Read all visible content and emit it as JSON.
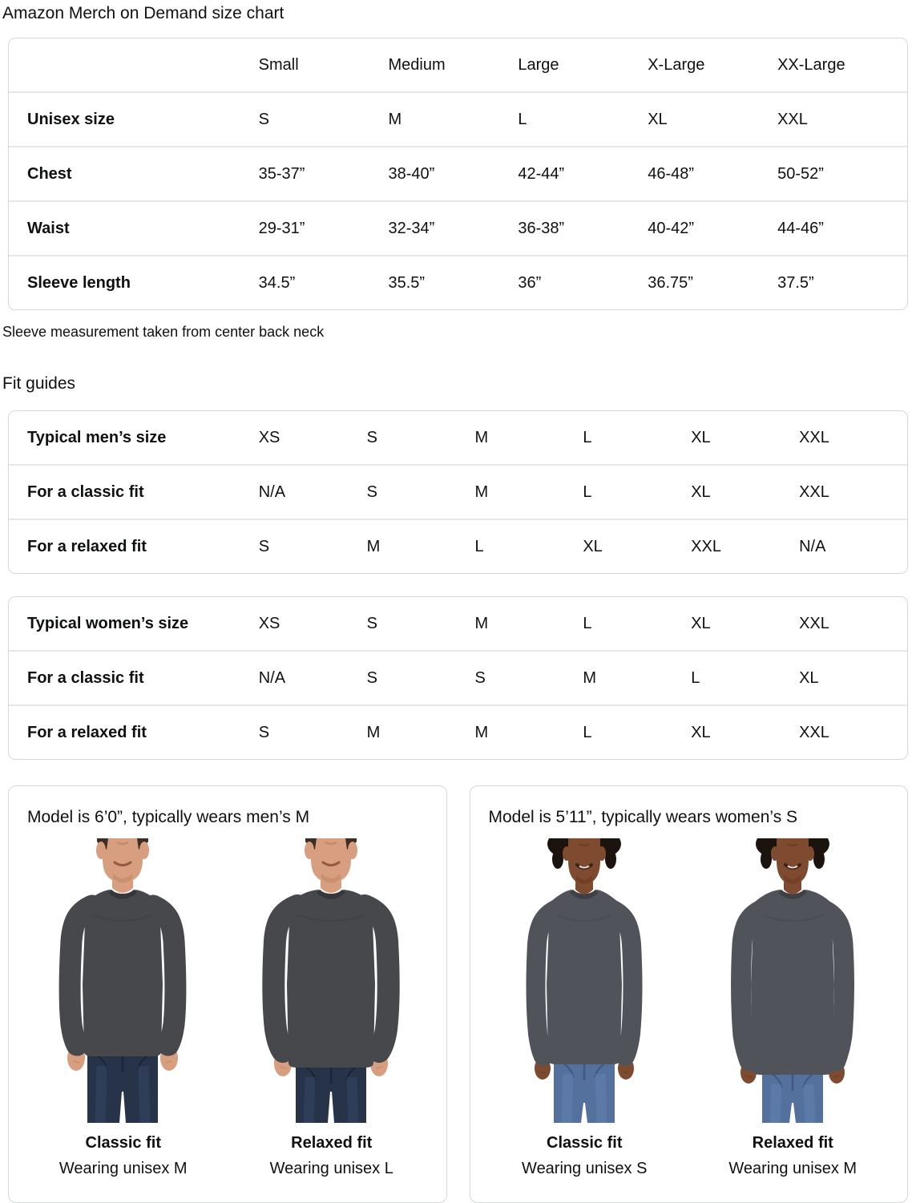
{
  "page": {
    "title": "Amazon Merch on Demand size chart",
    "note": "Sleeve measurement taken from center back neck",
    "fit_guides_heading": "Fit guides"
  },
  "size_table": {
    "columns": [
      "",
      "Small",
      "Medium",
      "Large",
      "X-Large",
      "XX-Large"
    ],
    "rows": [
      {
        "label": "Unisex size",
        "values": [
          "S",
          "M",
          "L",
          "XL",
          "XXL"
        ]
      },
      {
        "label": "Chest",
        "values": [
          "35-37”",
          "38-40”",
          "42-44”",
          "46-48”",
          "50-52”"
        ]
      },
      {
        "label": "Waist",
        "values": [
          "29-31”",
          "32-34”",
          "36-38”",
          "40-42”",
          "44-46”"
        ]
      },
      {
        "label": "Sleeve length",
        "values": [
          "34.5”",
          "35.5”",
          "36”",
          "36.75”",
          "37.5”"
        ]
      }
    ]
  },
  "fit_tables": [
    {
      "name": "men",
      "rows": [
        {
          "label": "Typical men’s size",
          "values": [
            "XS",
            "S",
            "M",
            "L",
            "XL",
            "XXL"
          ]
        },
        {
          "label": "For a classic fit",
          "values": [
            "N/A",
            "S",
            "M",
            "L",
            "XL",
            "XXL"
          ]
        },
        {
          "label": "For a relaxed fit",
          "values": [
            "S",
            "M",
            "L",
            "XL",
            "XXL",
            "N/A"
          ]
        }
      ]
    },
    {
      "name": "women",
      "rows": [
        {
          "label": "Typical women’s size",
          "values": [
            "XS",
            "S",
            "M",
            "L",
            "XL",
            "XXL"
          ]
        },
        {
          "label": "For a classic fit",
          "values": [
            "N/A",
            "S",
            "S",
            "M",
            "L",
            "XL"
          ]
        },
        {
          "label": "For a relaxed fit",
          "values": [
            "S",
            "M",
            "M",
            "L",
            "XL",
            "XXL"
          ]
        }
      ]
    }
  ],
  "model_cards": [
    {
      "heading": "Model is 6’0”, typically wears men’s M",
      "figures": [
        {
          "fit_label": "Classic fit",
          "wearing": "Wearing unisex M",
          "variant": "man",
          "relaxed": false
        },
        {
          "fit_label": "Relaxed fit",
          "wearing": "Wearing unisex L",
          "variant": "man",
          "relaxed": true
        }
      ]
    },
    {
      "heading": "Model is 5’11”, typically wears women’s S",
      "figures": [
        {
          "fit_label": "Classic fit",
          "wearing": "Wearing unisex S",
          "variant": "woman",
          "relaxed": false
        },
        {
          "fit_label": "Relaxed fit",
          "wearing": "Wearing unisex M",
          "variant": "woman",
          "relaxed": true
        }
      ]
    }
  ],
  "colors": {
    "text": "#0F1111",
    "table_border": "#D5D9D9",
    "row_divider": "#E7E7E7",
    "background": "#FFFFFF"
  },
  "figure_colors": {
    "man": {
      "skin": "#D79E7F",
      "skin_shade": "#BE855F",
      "hair": "#3B2E24",
      "shirt": "#47484C",
      "collar": "#36373B",
      "jeans": "#273349",
      "jeans_wash": "#3A4B6B",
      "jeans_dark": "#1B2535",
      "mouth": "#8F5B43"
    },
    "woman": {
      "skin": "#7E4B31",
      "skin_shade": "#67391F",
      "hair": "#1A130E",
      "shirt": "#51535A",
      "collar": "#3E4046",
      "jeans": "#54719E",
      "jeans_wash": "#6785B2",
      "jeans_dark": "#3E5880",
      "mouth": "#3E231A"
    }
  }
}
